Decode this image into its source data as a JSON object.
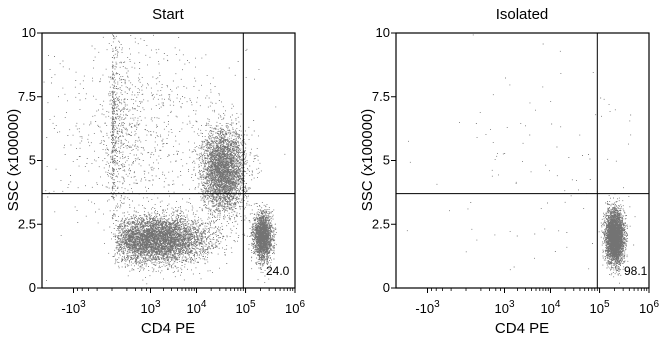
{
  "chart_data": [
    {
      "type": "scatter",
      "title": "Start",
      "xlabel": "CD4 PE",
      "ylabel": "SSC (x100000)",
      "xscale": "biexponential",
      "ylim": [
        0,
        10
      ],
      "yticks": [
        "0",
        "2.5",
        "5",
        "7.5",
        "10"
      ],
      "xticks": [
        {
          "base": "-10",
          "exp": "3",
          "value": -1000
        },
        {
          "base": "10",
          "exp": "3",
          "value": 1000
        },
        {
          "base": "10",
          "exp": "4",
          "value": 10000
        },
        {
          "base": "10",
          "exp": "5",
          "value": 100000
        },
        {
          "base": "10",
          "exp": "6",
          "value": 1000000
        }
      ],
      "gate": {
        "x": 90000,
        "y": 3.7
      },
      "gate_percent": "24.0",
      "populations": [
        {
          "label": "",
          "center": [
            1500,
            1.9
          ],
          "spread": [
            0.55,
            0.45
          ],
          "count": 5200
        },
        {
          "label": "",
          "center": [
            35000,
            4.6
          ],
          "spread": [
            0.22,
            0.8
          ],
          "count": 3800
        },
        {
          "label": "",
          "center": [
            220000,
            2.0
          ],
          "spread": [
            0.09,
            0.45
          ],
          "count": 2300
        },
        {
          "label": "",
          "center": [
            200,
            6.2
          ],
          "spread": [
            1.2,
            1.9
          ],
          "count": 1500
        }
      ]
    },
    {
      "type": "scatter",
      "title": "Isolated",
      "xlabel": "CD4 PE",
      "ylabel": "SSC (x100000)",
      "xscale": "biexponential",
      "ylim": [
        0,
        10
      ],
      "yticks": [
        "0",
        "2.5",
        "5",
        "7.5",
        "10"
      ],
      "xticks": [
        {
          "base": "-10",
          "exp": "3",
          "value": -1000
        },
        {
          "base": "10",
          "exp": "3",
          "value": 1000
        },
        {
          "base": "10",
          "exp": "4",
          "value": 10000
        },
        {
          "base": "10",
          "exp": "5",
          "value": 100000
        },
        {
          "base": "10",
          "exp": "6",
          "value": 1000000
        }
      ],
      "gate": {
        "x": 90000,
        "y": 3.7
      },
      "gate_percent": "98.1",
      "populations": [
        {
          "label": "",
          "center": [
            200000,
            2.0
          ],
          "spread": [
            0.09,
            0.5
          ],
          "count": 4200
        },
        {
          "label": "",
          "center": [
            8000,
            5.0
          ],
          "spread": [
            1.3,
            2.2
          ],
          "count": 120
        }
      ]
    }
  ]
}
